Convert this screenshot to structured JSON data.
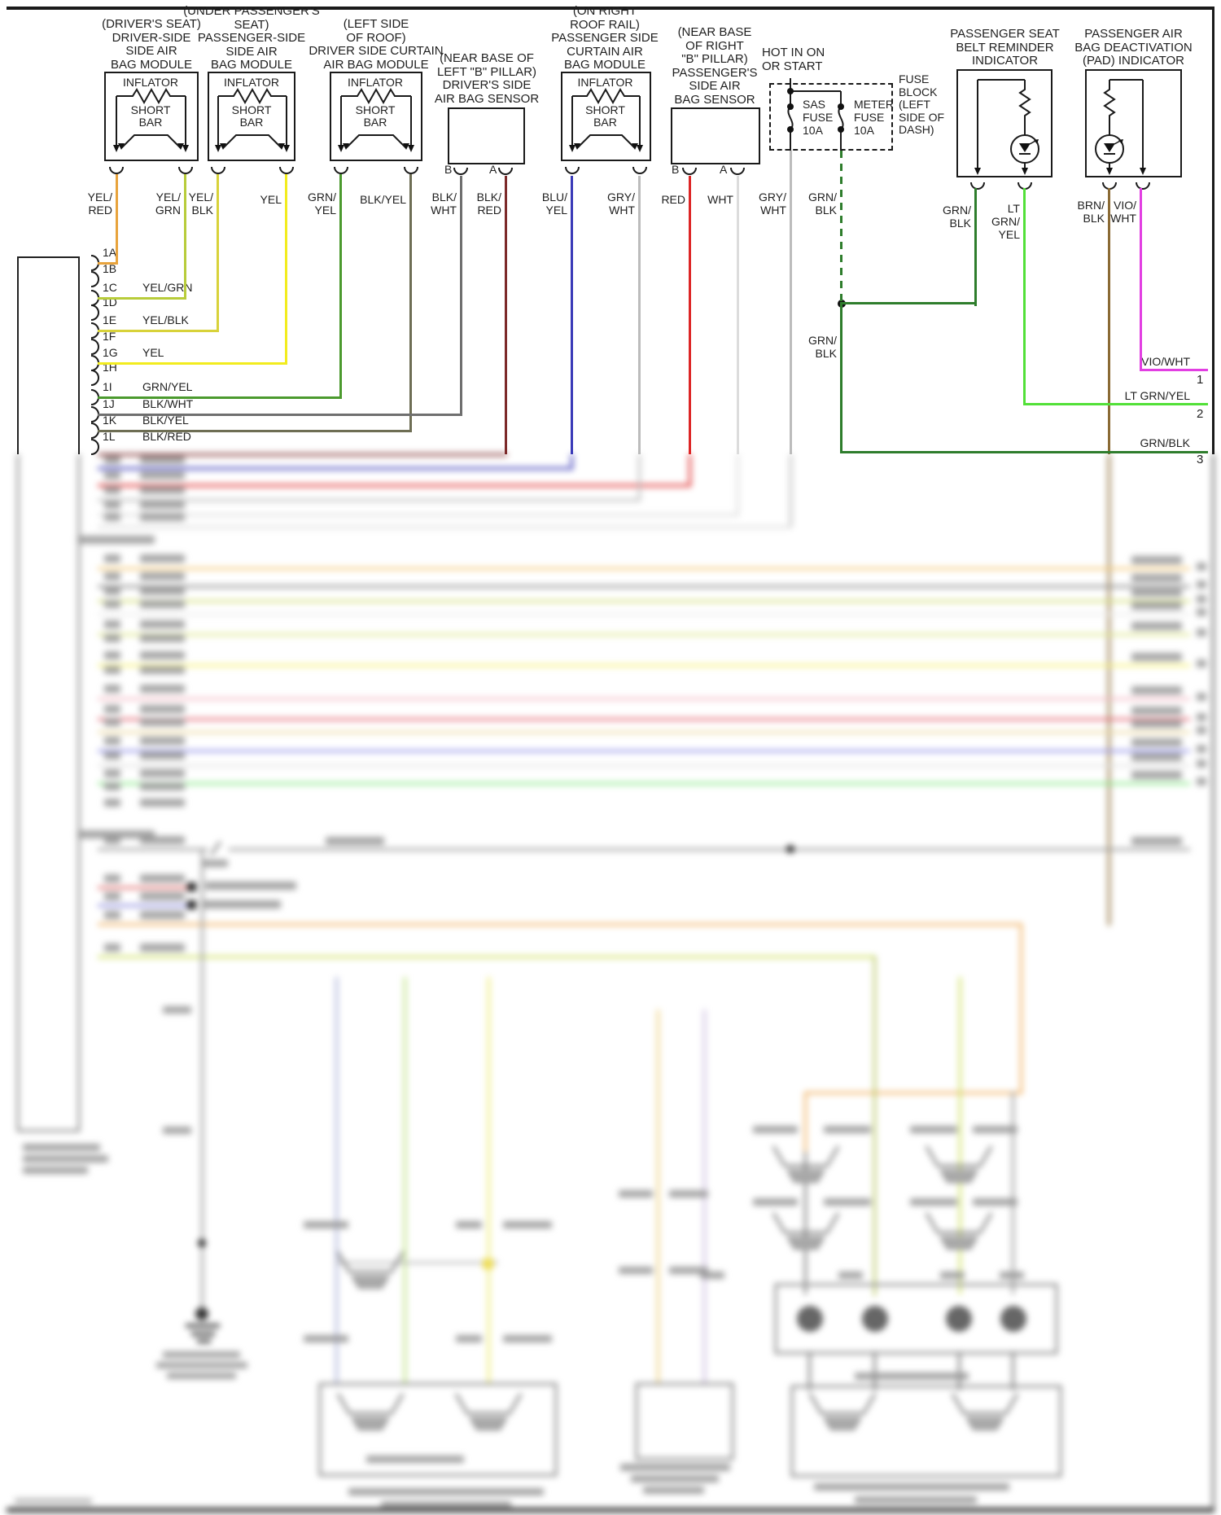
{
  "components": {
    "driver_seat_module": {
      "caption": "(DRIVER'S SEAT)\nDRIVER-SIDE\nSIDE AIR\nBAG MODULE",
      "inflator": "INFLATOR",
      "short_bar": "SHORT\nBAR"
    },
    "passenger_seat_module": {
      "caption": "(UNDER PASSENGER'S\nSEAT)\nPASSENGER-SIDE\nSIDE AIR\nBAG MODULE",
      "inflator": "INFLATOR",
      "short_bar": "SHORT\nBAR"
    },
    "driver_curtain_module": {
      "caption": "(LEFT SIDE\nOF ROOF)\nDRIVER SIDE CURTAIN\nAIR BAG MODULE",
      "inflator": "INFLATOR",
      "short_bar": "SHORT\nBAR"
    },
    "driver_side_sensor": {
      "caption": "(NEAR BASE OF\nLEFT \"B\" PILLAR)\nDRIVER'S SIDE\nAIR BAG SENSOR",
      "pin_b": "B",
      "pin_a": "A"
    },
    "passenger_curtain_module": {
      "caption": "(ON RIGHT\nROOF RAIL)\nPASSENGER SIDE\nCURTAIN AIR\nBAG MODULE",
      "inflator": "INFLATOR",
      "short_bar": "SHORT\nBAR"
    },
    "passenger_side_sensor": {
      "caption": "(NEAR BASE\nOF RIGHT\n\"B\" PILLAR)\nPASSENGER'S\nSIDE AIR\nBAG SENSOR",
      "pin_b": "B",
      "pin_a": "A"
    },
    "power": {
      "source": "HOT IN ON\nOR START",
      "fuse_block": "FUSE\nBLOCK\n(LEFT\nSIDE OF\nDASH)",
      "sas_fuse": "SAS\nFUSE\n10A",
      "meter_fuse": "METER\nFUSE\n10A"
    },
    "seat_belt_indicator": {
      "caption": "PASSENGER SEAT\nBELT REMINDER\nINDICATOR"
    },
    "pad_indicator": {
      "caption": "PASSENGER AIR\nBAG DEACTIVATION\n(PAD) INDICATOR"
    }
  },
  "wire_labels": {
    "yel_red": "YEL/\nRED",
    "yel_grn": "YEL/\nGRN",
    "yel_blk": "YEL/\nBLK",
    "yel": "YEL",
    "grn_yel": "GRN/\nYEL",
    "blk_yel": "BLK/YEL",
    "blk_wht": "BLK/\nWHT",
    "blk_red": "BLK/\nRED",
    "blu_yel": "BLU/\nYEL",
    "gry_wht": "GRY/\nWHT",
    "red": "RED",
    "wht": "WHT",
    "grn_blk": "GRN/\nBLK",
    "lt_grn_yel": "LT\nGRN/\nYEL",
    "brn_blk": "BRN/\nBLK",
    "vio_wht": "VIO/\nWHT"
  },
  "connector_pins": [
    {
      "id": "1A",
      "label": ""
    },
    {
      "id": "1B",
      "label": ""
    },
    {
      "id": "1C",
      "label": "YEL/GRN"
    },
    {
      "id": "1D",
      "label": ""
    },
    {
      "id": "1E",
      "label": "YEL/BLK"
    },
    {
      "id": "1F",
      "label": ""
    },
    {
      "id": "1G",
      "label": "YEL"
    },
    {
      "id": "1H",
      "label": ""
    },
    {
      "id": "1I",
      "label": "GRN/YEL"
    },
    {
      "id": "1J",
      "label": "BLK/WHT"
    },
    {
      "id": "1K",
      "label": "BLK/YEL"
    },
    {
      "id": "1L",
      "label": "BLK/RED"
    }
  ],
  "outputs": [
    {
      "label": "VIO/WHT",
      "number": "1"
    },
    {
      "label": "LT GRN/YEL",
      "number": "2"
    },
    {
      "label": "GRN/BLK",
      "number": "3"
    }
  ],
  "colors": {
    "yel_red": "#e8a33c",
    "yel_grn": "#b8cc3a",
    "yel_blk": "#d8d23a",
    "yel": "#f2ec1e",
    "grn_yel": "#4b9a2e",
    "blk_yel": "#6e6e54",
    "blk_wht": "#6f6f6f",
    "blk_red": "#7c2a2a",
    "blu_yel": "#3a3ab8",
    "gry_wht": "#bcbcbc",
    "red": "#dd2626",
    "wht": "#dcdcdc",
    "grn_blk": "#2e7d2c",
    "lt_grn_yel": "#52e038",
    "brn_blk": "#8a6a34",
    "vio_wht": "#e23ee2",
    "line": "#1a1a1a"
  }
}
